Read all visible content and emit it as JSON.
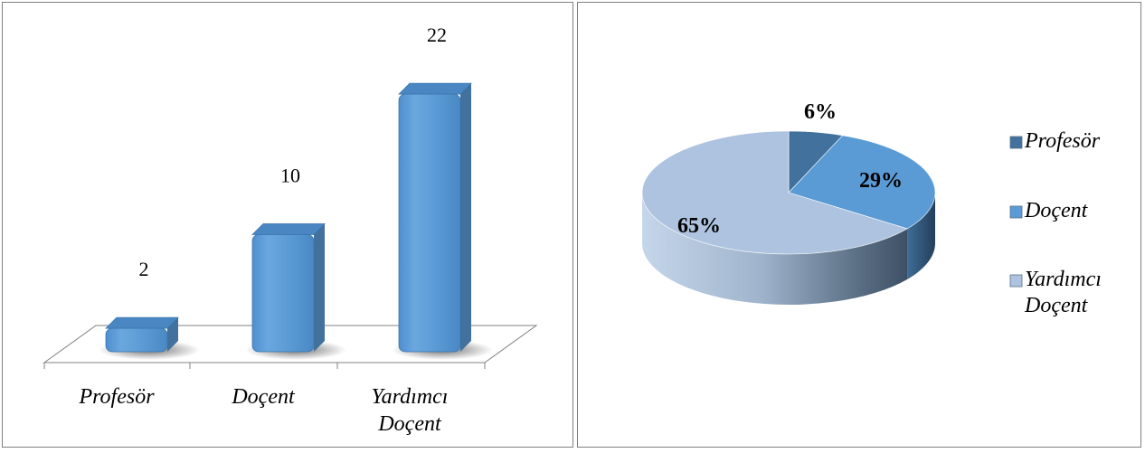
{
  "chart_data": [
    {
      "type": "bar",
      "categories": [
        "Profesör",
        "Doçent",
        "Yardımcı Doçent"
      ],
      "category_lines": [
        [
          "Profesör"
        ],
        [
          "Doçent"
        ],
        [
          "Yardımcı",
          "Doçent"
        ]
      ],
      "values": [
        2,
        10,
        22
      ],
      "data_labels": [
        "2",
        "10",
        "22"
      ],
      "colors": {
        "bar": "#5b9bd5",
        "bar_dark": "#41719c",
        "bar_top": "#4a86c2"
      }
    },
    {
      "type": "pie",
      "labels": [
        "Profesör",
        "Doçent",
        "Yardımcı Doçent"
      ],
      "legend_lines": [
        [
          "Profesör"
        ],
        [
          "Doçent"
        ],
        [
          "Yardımcı",
          "Doçent"
        ]
      ],
      "values": [
        6,
        29,
        65
      ],
      "data_labels": [
        "6%",
        "29%",
        "65%"
      ],
      "legend_position": "right",
      "colors": [
        "#41719c",
        "#5b9bd5",
        "#adc3df"
      ]
    }
  ]
}
